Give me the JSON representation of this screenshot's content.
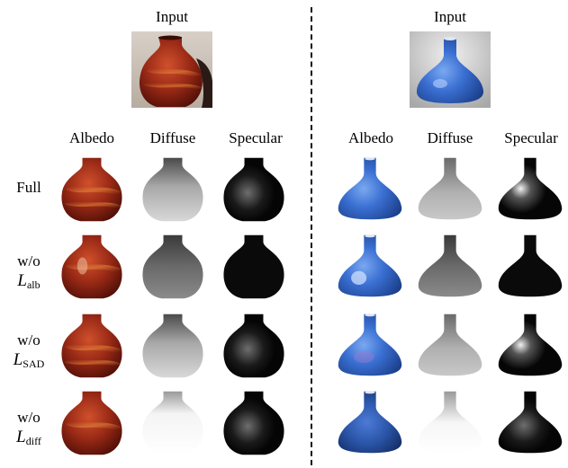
{
  "left": {
    "input_label": "Input",
    "columns": [
      "Albedo",
      "Diffuse",
      "Specular"
    ]
  },
  "right": {
    "input_label": "Input",
    "columns": [
      "Albedo",
      "Diffuse",
      "Specular"
    ]
  },
  "rows": [
    {
      "line1": "Full",
      "symbol": "",
      "subscript": ""
    },
    {
      "line1": "w/o",
      "symbol": "L",
      "subscript": "alb"
    },
    {
      "line1": "w/o",
      "symbol": "L",
      "subscript": "SAD"
    },
    {
      "line1": "w/o",
      "symbol": "L",
      "subscript": "diff"
    }
  ],
  "colors": {
    "red_albedo": "#8a1e12",
    "blue_albedo": "#2f63c8",
    "divider": "#111111"
  }
}
